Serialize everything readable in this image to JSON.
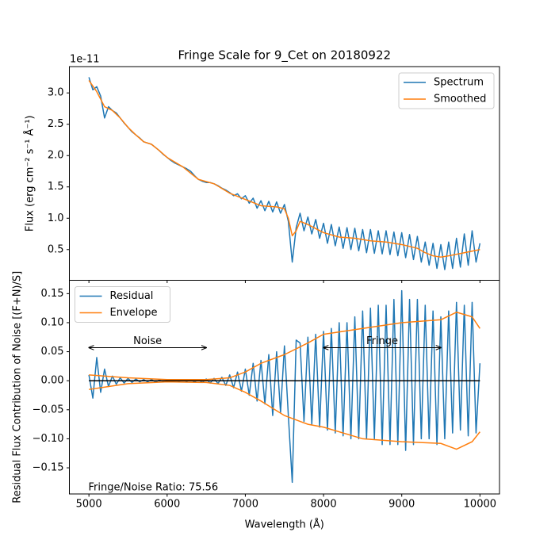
{
  "chart_data": [
    {
      "type": "line",
      "title": "Fringe Scale for 9_Cet on 20180922",
      "ylabel": "Flux (erg cm⁻² s⁻¹ Å⁻¹)",
      "offset_text": "1e-11",
      "xlim": [
        4750,
        10250
      ],
      "xticks": [
        5000,
        6000,
        7000,
        8000,
        9000,
        10000
      ],
      "ylim": [
        0.01,
        3.42
      ],
      "yticks": [
        0.5,
        {
          "value": 1,
          "label": "1.0"
        },
        1.5,
        {
          "value": 2,
          "label": "2.0"
        },
        2.5,
        {
          "value": 3,
          "label": "3.0"
        }
      ],
      "legend": "upper right",
      "x": [
        5000,
        5050,
        5100,
        5150,
        5200,
        5250,
        5300,
        5350,
        5400,
        5450,
        5500,
        5550,
        5600,
        5650,
        5700,
        5750,
        5800,
        5850,
        5900,
        5950,
        6000,
        6050,
        6100,
        6150,
        6200,
        6250,
        6300,
        6350,
        6400,
        6450,
        6500,
        6550,
        6600,
        6650,
        6700,
        6750,
        6800,
        6850,
        6900,
        6950,
        7000,
        7050,
        7100,
        7150,
        7200,
        7250,
        7300,
        7350,
        7400,
        7450,
        7500,
        7550,
        7600,
        7650,
        7700,
        7750,
        7800,
        7850,
        7900,
        7950,
        8000,
        8050,
        8100,
        8150,
        8200,
        8250,
        8300,
        8350,
        8400,
        8450,
        8500,
        8550,
        8600,
        8650,
        8700,
        8750,
        8800,
        8850,
        8900,
        8950,
        9000,
        9050,
        9100,
        9150,
        9200,
        9250,
        9300,
        9350,
        9400,
        9450,
        9500,
        9550,
        9600,
        9650,
        9700,
        9750,
        9800,
        9850,
        9900,
        9950,
        10000
      ],
      "series": [
        {
          "name": "Spectrum",
          "color": "#1f77b4",
          "values": [
            3.25,
            3.05,
            3.1,
            2.95,
            2.6,
            2.78,
            2.72,
            2.68,
            2.6,
            2.52,
            2.45,
            2.38,
            2.33,
            2.28,
            2.22,
            2.2,
            2.18,
            2.13,
            2.08,
            2.02,
            1.97,
            1.92,
            1.88,
            1.85,
            1.82,
            1.79,
            1.75,
            1.68,
            1.62,
            1.59,
            1.57,
            1.57,
            1.55,
            1.52,
            1.48,
            1.45,
            1.41,
            1.36,
            1.39,
            1.31,
            1.36,
            1.24,
            1.32,
            1.16,
            1.28,
            1.12,
            1.27,
            1.1,
            1.26,
            1.08,
            1.22,
            0.95,
            0.3,
            0.85,
            1.08,
            0.8,
            1.02,
            0.75,
            0.98,
            0.68,
            0.92,
            0.6,
            0.9,
            0.56,
            0.86,
            0.52,
            0.85,
            0.5,
            0.84,
            0.48,
            0.82,
            0.45,
            0.82,
            0.44,
            0.8,
            0.43,
            0.8,
            0.42,
            0.78,
            0.4,
            0.77,
            0.37,
            0.74,
            0.34,
            0.71,
            0.3,
            0.62,
            0.25,
            0.6,
            0.2,
            0.58,
            0.18,
            0.62,
            0.2,
            0.68,
            0.22,
            0.75,
            0.25,
            0.8,
            0.3,
            0.6
          ]
        },
        {
          "name": "Smoothed",
          "color": "#ff7f0e",
          "x": [
            5000,
            5100,
            5200,
            5300,
            5400,
            5500,
            5600,
            5700,
            5800,
            5900,
            6000,
            6200,
            6400,
            6600,
            6800,
            7000,
            7200,
            7400,
            7500,
            7550,
            7600,
            7650,
            7700,
            7800,
            8000,
            8200,
            8400,
            8600,
            8800,
            9000,
            9200,
            9300,
            9400,
            9500,
            9600,
            9800,
            10000
          ],
          "values": [
            3.2,
            3.02,
            2.78,
            2.72,
            2.6,
            2.45,
            2.33,
            2.22,
            2.18,
            2.08,
            1.97,
            1.82,
            1.62,
            1.55,
            1.4,
            1.3,
            1.2,
            1.18,
            1.15,
            1.0,
            0.72,
            0.8,
            0.95,
            0.9,
            0.77,
            0.7,
            0.68,
            0.64,
            0.62,
            0.58,
            0.52,
            0.45,
            0.4,
            0.38,
            0.4,
            0.45,
            0.5
          ]
        }
      ]
    },
    {
      "type": "line",
      "xlabel": "Wavelength (Å)",
      "ylabel": "Residual Flux Contribution of Noise [(F+N)/S]",
      "xlim": [
        4750,
        10250
      ],
      "xticks": [
        5000,
        6000,
        7000,
        8000,
        9000,
        10000
      ],
      "ylim": [
        -0.195,
        0.173
      ],
      "yticks": [
        {
          "value": -0.15,
          "label": "−0.15"
        },
        {
          "value": -0.1,
          "label": "−0.10"
        },
        {
          "value": -0.05,
          "label": "−0.05"
        },
        {
          "value": 0,
          "label": "0.00"
        },
        0.05,
        {
          "value": 0.1,
          "label": "0.10"
        },
        0.15
      ],
      "legend": "upper left",
      "hline": {
        "y": 0,
        "xmin": 5000,
        "xmax": 10000,
        "color": "#000000"
      },
      "annotations": [
        {
          "text": "Noise",
          "x_start": 5000,
          "x_end": 6500,
          "y": 0.057
        },
        {
          "text": "Fringe",
          "x_start": 8000,
          "x_end": 9500,
          "y": 0.057
        }
      ],
      "note": "Fringe/Noise Ratio: 75.56",
      "x": [
        5000,
        5050,
        5100,
        5150,
        5200,
        5250,
        5300,
        5350,
        5400,
        5450,
        5500,
        5550,
        5600,
        5650,
        5700,
        5750,
        5800,
        5850,
        5900,
        5950,
        6000,
        6050,
        6100,
        6150,
        6200,
        6250,
        6300,
        6350,
        6400,
        6450,
        6500,
        6550,
        6600,
        6650,
        6700,
        6750,
        6800,
        6850,
        6900,
        6950,
        7000,
        7050,
        7100,
        7150,
        7200,
        7250,
        7300,
        7350,
        7400,
        7450,
        7500,
        7550,
        7600,
        7650,
        7700,
        7750,
        7800,
        7850,
        7900,
        7950,
        8000,
        8050,
        8100,
        8150,
        8200,
        8250,
        8300,
        8350,
        8400,
        8450,
        8500,
        8550,
        8600,
        8650,
        8700,
        8750,
        8800,
        8850,
        8900,
        8950,
        9000,
        9050,
        9100,
        9150,
        9200,
        9250,
        9300,
        9350,
        9400,
        9450,
        9500,
        9550,
        9600,
        9650,
        9700,
        9750,
        9800,
        9850,
        9900,
        9950,
        10000
      ],
      "series": [
        {
          "name": "Residual",
          "color": "#1f77b4",
          "values": [
            0.01,
            -0.03,
            0.04,
            -0.02,
            0.02,
            -0.01,
            0.008,
            -0.006,
            0.005,
            -0.004,
            0.004,
            -0.003,
            0.003,
            -0.002,
            0.002,
            -0.002,
            0.002,
            -0.002,
            0.001,
            -0.001,
            0.001,
            -0.001,
            0.001,
            -0.001,
            0.001,
            -0.001,
            0.002,
            -0.002,
            0.002,
            -0.003,
            0.003,
            -0.004,
            0.004,
            -0.005,
            0.006,
            -0.008,
            0.01,
            -0.012,
            0.015,
            -0.018,
            0.02,
            -0.025,
            0.03,
            -0.035,
            0.035,
            -0.04,
            0.045,
            -0.06,
            0.05,
            -0.055,
            0.06,
            -0.06,
            -0.175,
            0.07,
            0.065,
            -0.07,
            0.075,
            -0.075,
            0.08,
            -0.08,
            0.085,
            -0.085,
            0.09,
            -0.09,
            0.1,
            -0.095,
            0.1,
            -0.1,
            0.11,
            -0.1,
            0.12,
            -0.1,
            0.125,
            -0.1,
            0.13,
            -0.11,
            0.13,
            -0.11,
            0.14,
            -0.11,
            0.155,
            -0.12,
            0.14,
            -0.11,
            0.14,
            -0.1,
            0.13,
            -0.1,
            0.12,
            -0.11,
            0.11,
            -0.1,
            0.12,
            -0.09,
            0.135,
            -0.085,
            0.13,
            -0.095,
            0.135,
            -0.09,
            0.03
          ]
        },
        {
          "name": "Envelope",
          "color": "#ff7f0e",
          "x": [
            5000,
            5500,
            6000,
            6500,
            6800,
            7000,
            7200,
            7500,
            7800,
            8000,
            8500,
            9000,
            9500,
            9700,
            9900,
            10000
          ],
          "values": [
            0.01,
            0.005,
            0.002,
            0.002,
            0.005,
            0.015,
            0.03,
            0.045,
            0.065,
            0.08,
            0.09,
            0.1,
            0.105,
            0.118,
            0.11,
            0.09
          ],
          "lower_values": [
            -0.015,
            -0.005,
            -0.002,
            -0.003,
            -0.008,
            -0.02,
            -0.035,
            -0.06,
            -0.075,
            -0.08,
            -0.1,
            -0.105,
            -0.108,
            -0.118,
            -0.105,
            -0.088
          ]
        }
      ]
    }
  ]
}
